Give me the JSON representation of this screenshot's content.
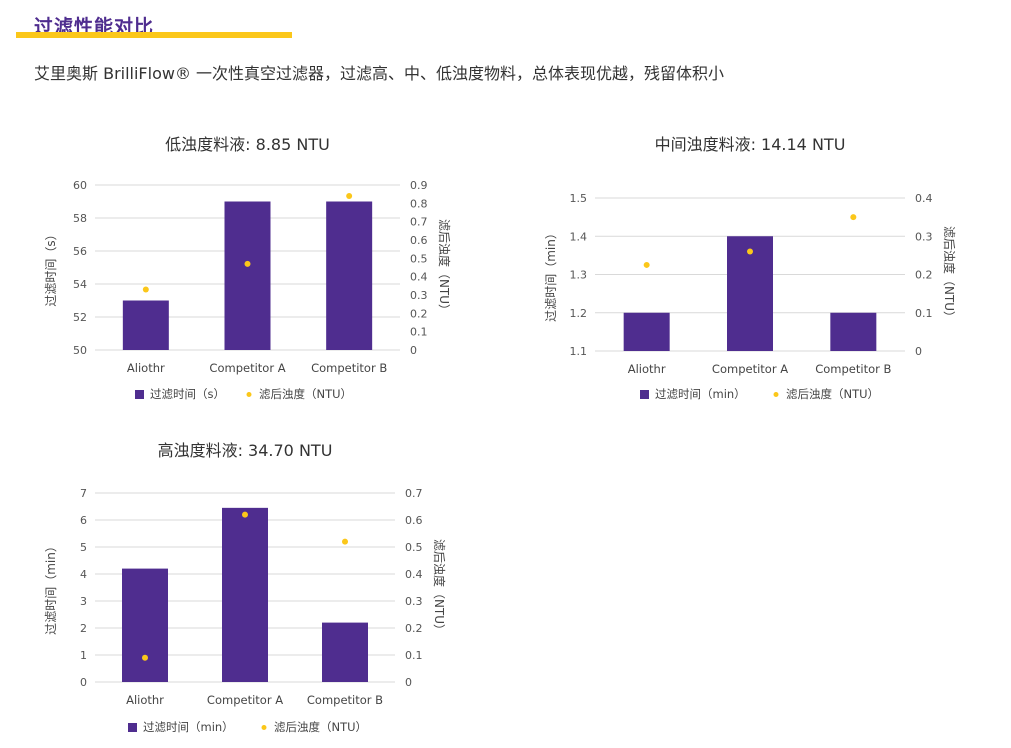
{
  "page": {
    "title": "过滤性能对比",
    "subtitle": "艾里奥斯 BrilliFlow® 一次性真空过滤器，过滤高、中、低浊度物料，总体表现优越，残留体积小"
  },
  "colors": {
    "bar": "#4f2d8f",
    "dot": "#fbc71a",
    "accent": "#4f2d8f",
    "underline": "#fbc71a"
  },
  "chart_data": [
    {
      "type": "bar",
      "title": "低浊度料液: 8.85 NTU",
      "categories": [
        "Aliothr",
        "Competitor A",
        "Competitor B"
      ],
      "series": [
        {
          "name": "过滤时间（s）",
          "type": "bar",
          "axis": "left",
          "values": [
            53,
            59,
            59
          ]
        },
        {
          "name": "滤后浊度（NTU）",
          "type": "scatter",
          "axis": "right",
          "values": [
            0.33,
            0.47,
            0.84
          ]
        }
      ],
      "ylabel": "过滤时间（s）",
      "y2label": "滤后浊度（NTU）",
      "ylim": [
        50,
        60
      ],
      "yticks": [
        50,
        52,
        54,
        56,
        58,
        60
      ],
      "y2lim": [
        0,
        0.9
      ],
      "y2ticks": [
        0,
        0.1,
        0.2,
        0.3,
        0.4,
        0.5,
        0.6,
        0.7,
        0.8,
        0.9
      ],
      "legend": "bottom",
      "grid": true
    },
    {
      "type": "bar",
      "title": "中间浊度料液: 14.14 NTU",
      "categories": [
        "Aliothr",
        "Competitor A",
        "Competitor B"
      ],
      "series": [
        {
          "name": "过滤时间（min）",
          "type": "bar",
          "axis": "left",
          "values": [
            1.2,
            1.4,
            1.2
          ]
        },
        {
          "name": "滤后浊度（NTU）",
          "type": "scatter",
          "axis": "right",
          "values": [
            0.225,
            0.26,
            0.35
          ]
        }
      ],
      "ylabel": "过滤时间（min）",
      "y2label": "滤后浊度（NTU）",
      "ylim": [
        1.1,
        1.5
      ],
      "yticks": [
        1.1,
        1.2,
        1.3,
        1.4,
        1.5
      ],
      "y2lim": [
        0,
        0.4
      ],
      "y2ticks": [
        0,
        0.1,
        0.2,
        0.3,
        0.4
      ],
      "legend": "bottom",
      "grid": true
    },
    {
      "type": "bar",
      "title": "高浊度料液: 34.70 NTU",
      "categories": [
        "Aliothr",
        "Competitor A",
        "Competitor B"
      ],
      "series": [
        {
          "name": "过滤时间（min）",
          "type": "bar",
          "axis": "left",
          "values": [
            4.2,
            6.45,
            2.2
          ]
        },
        {
          "name": "滤后浊度（NTU）",
          "type": "scatter",
          "axis": "right",
          "values": [
            0.09,
            0.62,
            0.52
          ]
        }
      ],
      "ylabel": "过滤时间（min）",
      "y2label": "滤后浊度（NTU）",
      "ylim": [
        0,
        7
      ],
      "yticks": [
        0,
        1,
        2,
        3,
        4,
        5,
        6,
        7
      ],
      "y2lim": [
        0,
        0.7
      ],
      "y2ticks": [
        0,
        0.1,
        0.2,
        0.3,
        0.4,
        0.5,
        0.6,
        0.7
      ],
      "legend": "bottom",
      "grid": true
    }
  ]
}
